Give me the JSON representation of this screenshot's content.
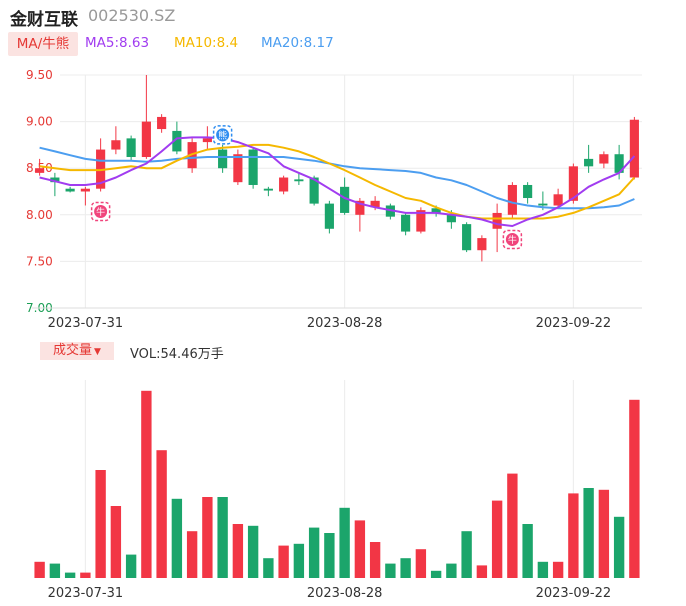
{
  "header": {
    "name": "金财互联",
    "code": "002530.SZ"
  },
  "ma": {
    "button": "MA/牛熊",
    "items": [
      {
        "label": "MA5:8.63",
        "color": "#a13cf0"
      },
      {
        "label": "MA10:8.4",
        "color": "#f5b800"
      },
      {
        "label": "MA20:8.17",
        "color": "#4c9ef0"
      }
    ]
  },
  "volume": {
    "button": "成交量",
    "caret": "▼",
    "label": "VOL:54.46万手"
  },
  "colors": {
    "up": "#f23645",
    "down": "#1ba56b",
    "ma5": "#a13cf0",
    "ma10": "#f5b800",
    "ma20": "#4c9ef0"
  },
  "chart_data": {
    "type": "candlestick",
    "ylim": [
      7.0,
      9.5
    ],
    "y_ticks": [
      "9.50",
      "9.00",
      "8.50",
      "8.00",
      "7.50",
      "7.00"
    ],
    "x_labels": [
      {
        "text": "2023-07-31",
        "index": 3
      },
      {
        "text": "2023-08-28",
        "index": 20
      },
      {
        "text": "2023-09-22",
        "index": 35
      }
    ],
    "candles": [
      [
        8.45,
        8.5,
        8.42,
        8.6
      ],
      [
        8.4,
        8.35,
        8.2,
        8.45
      ],
      [
        8.28,
        8.25,
        8.24,
        8.3
      ],
      [
        8.25,
        8.28,
        8.1,
        8.3
      ],
      [
        8.28,
        8.7,
        8.25,
        8.82
      ],
      [
        8.7,
        8.8,
        8.65,
        8.95
      ],
      [
        8.82,
        8.62,
        8.58,
        8.85
      ],
      [
        8.62,
        9.0,
        8.6,
        9.5
      ],
      [
        8.92,
        9.05,
        8.88,
        9.08
      ],
      [
        8.9,
        8.68,
        8.65,
        9.0
      ],
      [
        8.5,
        8.78,
        8.45,
        8.82
      ],
      [
        8.78,
        8.82,
        8.7,
        8.95
      ],
      [
        8.7,
        8.5,
        8.45,
        8.75
      ],
      [
        8.35,
        8.65,
        8.32,
        8.7
      ],
      [
        8.7,
        8.32,
        8.28,
        8.72
      ],
      [
        8.28,
        8.26,
        8.2,
        8.3
      ],
      [
        8.25,
        8.4,
        8.22,
        8.42
      ],
      [
        8.38,
        8.36,
        8.32,
        8.45
      ],
      [
        8.4,
        8.12,
        8.1,
        8.42
      ],
      [
        8.12,
        7.85,
        7.8,
        8.15
      ],
      [
        8.3,
        8.02,
        8.0,
        8.4
      ],
      [
        8.0,
        8.15,
        7.82,
        8.18
      ],
      [
        8.08,
        8.15,
        8.05,
        8.2
      ],
      [
        8.1,
        7.98,
        7.95,
        8.12
      ],
      [
        8.0,
        7.82,
        7.78,
        8.02
      ],
      [
        7.82,
        8.05,
        7.8,
        8.08
      ],
      [
        8.07,
        8.02,
        7.98,
        8.1
      ],
      [
        8.0,
        7.92,
        7.85,
        8.05
      ],
      [
        7.9,
        7.62,
        7.6,
        7.92
      ],
      [
        7.62,
        7.75,
        7.5,
        7.78
      ],
      [
        7.85,
        8.02,
        7.6,
        8.12
      ],
      [
        8.0,
        8.32,
        7.95,
        8.35
      ],
      [
        8.32,
        8.18,
        8.12,
        8.35
      ],
      [
        8.12,
        8.1,
        8.05,
        8.25
      ],
      [
        8.1,
        8.22,
        8.08,
        8.28
      ],
      [
        8.15,
        8.52,
        8.12,
        8.55
      ],
      [
        8.6,
        8.52,
        8.45,
        8.75
      ],
      [
        8.55,
        8.65,
        8.5,
        8.68
      ],
      [
        8.65,
        8.45,
        8.38,
        8.75
      ],
      [
        8.4,
        9.02,
        8.38,
        9.05
      ]
    ],
    "ma5": [
      8.4,
      8.36,
      8.32,
      8.32,
      8.34,
      8.4,
      8.48,
      8.55,
      8.68,
      8.82,
      8.83,
      8.83,
      8.82,
      8.78,
      8.72,
      8.66,
      8.52,
      8.45,
      8.38,
      8.28,
      8.18,
      8.12,
      8.08,
      8.05,
      8.02,
      8.02,
      8.02,
      8.0,
      7.98,
      7.95,
      7.9,
      7.88,
      7.95,
      8.0,
      8.08,
      8.18,
      8.3,
      8.38,
      8.45,
      8.63
    ],
    "ma10": [
      8.52,
      8.5,
      8.48,
      8.48,
      8.48,
      8.5,
      8.52,
      8.5,
      8.5,
      8.58,
      8.65,
      8.7,
      8.72,
      8.73,
      8.75,
      8.75,
      8.72,
      8.68,
      8.62,
      8.55,
      8.48,
      8.4,
      8.32,
      8.25,
      8.18,
      8.15,
      8.08,
      8.02,
      7.98,
      7.96,
      7.96,
      7.96,
      7.96,
      7.96,
      7.98,
      8.02,
      8.08,
      8.15,
      8.22,
      8.4
    ],
    "ma20": [
      8.72,
      8.68,
      8.64,
      8.6,
      8.58,
      8.58,
      8.58,
      8.57,
      8.58,
      8.6,
      8.61,
      8.62,
      8.62,
      8.62,
      8.62,
      8.62,
      8.62,
      8.6,
      8.58,
      8.55,
      8.52,
      8.5,
      8.49,
      8.48,
      8.47,
      8.45,
      8.4,
      8.37,
      8.32,
      8.25,
      8.18,
      8.13,
      8.1,
      8.08,
      8.07,
      8.07,
      8.07,
      8.08,
      8.1,
      8.17
    ],
    "volume": [
      9,
      8,
      3,
      3,
      60,
      40,
      13,
      104,
      71,
      44,
      26,
      45,
      45,
      30,
      29,
      11,
      18,
      19,
      28,
      25,
      39,
      32,
      20,
      8,
      11,
      16,
      4,
      8,
      26,
      7,
      43,
      58,
      30,
      9,
      9,
      47,
      50,
      49,
      34,
      99
    ],
    "vol_max": 110,
    "markers": [
      {
        "index": 4,
        "type": "bull",
        "glyph": "牛"
      },
      {
        "index": 12,
        "type": "bear",
        "glyph": "熊"
      },
      {
        "index": 31,
        "type": "bull",
        "glyph": "牛"
      }
    ]
  }
}
